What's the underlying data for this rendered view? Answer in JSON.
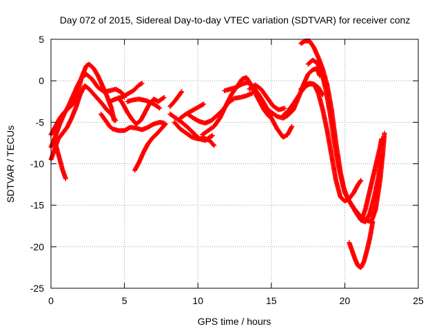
{
  "chart_data": {
    "type": "scatter",
    "title": "Day 072 of 2015, Sidereal Day-to-day VTEC variation (SDTVAR) for receiver conz",
    "xlabel": "GPS time / hours",
    "ylabel": "SDTVAR / TECUs",
    "xlim": [
      0,
      25
    ],
    "ylim": [
      -25,
      5
    ],
    "xticks": [
      "0",
      "5",
      "10",
      "15",
      "20",
      "25"
    ],
    "yticks": [
      "5",
      "0",
      "-5",
      "-10",
      "-15",
      "-20",
      "-25"
    ],
    "grid": true,
    "marker_color": "#ff0000",
    "series": [
      {
        "points": [
          [
            0.0,
            -6.5
          ],
          [
            0.3,
            -5.5
          ],
          [
            0.6,
            -4.5
          ],
          [
            0.9,
            -3.8
          ],
          [
            1.2,
            -3.3
          ],
          [
            1.5,
            -2.8
          ],
          [
            1.8,
            -1.5
          ],
          [
            2.1,
            0.5
          ],
          [
            2.4,
            1.8
          ],
          [
            2.6,
            2.0
          ],
          [
            2.9,
            1.5
          ],
          [
            3.2,
            0.6
          ],
          [
            3.5,
            -0.6
          ],
          [
            3.8,
            -1.8
          ],
          [
            4.1,
            -3.2
          ],
          [
            4.3,
            -4.8
          ]
        ]
      },
      {
        "points": [
          [
            0.0,
            -9.5
          ],
          [
            0.2,
            -8.5
          ],
          [
            0.5,
            -7.0
          ],
          [
            0.8,
            -6.3
          ],
          [
            1.1,
            -5.6
          ],
          [
            1.4,
            -4.5
          ],
          [
            1.7,
            -3.2
          ],
          [
            2.0,
            -1.6
          ],
          [
            2.3,
            -0.6
          ],
          [
            2.6,
            -1.0
          ],
          [
            2.9,
            -1.6
          ],
          [
            3.2,
            -2.2
          ],
          [
            3.5,
            -2.8
          ],
          [
            3.8,
            -3.5
          ],
          [
            4.1,
            -4.0
          ],
          [
            4.4,
            -4.8
          ]
        ]
      },
      {
        "points": [
          [
            0.0,
            -8.0
          ],
          [
            0.2,
            -7.2
          ],
          [
            0.4,
            -6.2
          ],
          [
            0.6,
            -5.2
          ],
          [
            0.9,
            -4.0
          ],
          [
            1.2,
            -3.0
          ],
          [
            1.5,
            -1.8
          ],
          [
            1.8,
            -0.6
          ],
          [
            2.1,
            0.4
          ],
          [
            2.4,
            0.8
          ],
          [
            2.8,
            0.2
          ],
          [
            3.2,
            -0.8
          ],
          [
            3.6,
            -1.3
          ],
          [
            4.0,
            -1.2
          ],
          [
            4.4,
            -1.0
          ],
          [
            4.8,
            -1.4
          ],
          [
            5.0,
            -2.0
          ]
        ]
      },
      {
        "points": [
          [
            0.2,
            -7.0
          ],
          [
            0.4,
            -8.2
          ],
          [
            0.6,
            -9.5
          ],
          [
            0.8,
            -10.8
          ],
          [
            1.0,
            -11.8
          ]
        ]
      },
      {
        "points": [
          [
            3.4,
            -4.0
          ],
          [
            3.6,
            -4.5
          ],
          [
            3.8,
            -5.0
          ],
          [
            4.0,
            -5.5
          ],
          [
            4.2,
            -5.8
          ],
          [
            4.6,
            -6.0
          ],
          [
            5.0,
            -6.0
          ],
          [
            5.4,
            -5.6
          ],
          [
            5.8,
            -5.7
          ],
          [
            6.2,
            -5.9
          ],
          [
            6.6,
            -5.6
          ],
          [
            7.0,
            -5.2
          ],
          [
            7.4,
            -5.0
          ],
          [
            7.7,
            -5.1
          ]
        ]
      },
      {
        "points": [
          [
            4.0,
            -2.5
          ],
          [
            4.4,
            -2.2
          ],
          [
            4.8,
            -2.0
          ],
          [
            5.2,
            -1.6
          ],
          [
            5.6,
            -1.2
          ],
          [
            6.0,
            -0.5
          ],
          [
            6.2,
            -0.3
          ]
        ]
      },
      {
        "points": [
          [
            4.6,
            -2.0
          ],
          [
            4.9,
            -2.8
          ],
          [
            5.2,
            -3.8
          ],
          [
            5.5,
            -4.6
          ],
          [
            5.8,
            -5.2
          ],
          [
            6.1,
            -4.8
          ],
          [
            6.4,
            -3.8
          ],
          [
            6.7,
            -2.8
          ],
          [
            7.0,
            -2.2
          ],
          [
            7.3,
            -2.5
          ],
          [
            7.7,
            -2.0
          ]
        ]
      },
      {
        "points": [
          [
            5.7,
            -10.8
          ],
          [
            6.0,
            -9.8
          ],
          [
            6.3,
            -8.6
          ],
          [
            6.6,
            -7.6
          ],
          [
            6.9,
            -6.9
          ],
          [
            7.2,
            -6.4
          ],
          [
            7.5,
            -5.8
          ],
          [
            7.8,
            -5.2
          ]
        ]
      },
      {
        "points": [
          [
            5.2,
            -2.5
          ],
          [
            5.6,
            -2.3
          ],
          [
            6.0,
            -2.2
          ],
          [
            6.5,
            -2.4
          ],
          [
            7.0,
            -2.8
          ],
          [
            7.4,
            -3.3
          ]
        ]
      },
      {
        "points": [
          [
            8.1,
            -3.1
          ],
          [
            8.4,
            -2.5
          ],
          [
            8.7,
            -1.8
          ],
          [
            8.9,
            -1.3
          ]
        ]
      },
      {
        "points": [
          [
            8.1,
            -4.0
          ],
          [
            8.5,
            -4.5
          ],
          [
            8.9,
            -5.0
          ],
          [
            9.3,
            -5.6
          ],
          [
            9.7,
            -6.3
          ],
          [
            10.1,
            -7.0
          ],
          [
            10.5,
            -7.2
          ],
          [
            10.8,
            -6.8
          ],
          [
            11.0,
            -6.6
          ]
        ]
      },
      {
        "points": [
          [
            8.4,
            -5.0
          ],
          [
            8.8,
            -5.8
          ],
          [
            9.2,
            -6.3
          ],
          [
            9.6,
            -6.8
          ],
          [
            10.0,
            -7.0
          ],
          [
            10.4,
            -6.9
          ],
          [
            10.8,
            -7.2
          ],
          [
            11.1,
            -7.8
          ]
        ]
      },
      {
        "points": [
          [
            8.8,
            -4.5
          ],
          [
            9.2,
            -4.0
          ],
          [
            9.6,
            -3.6
          ],
          [
            10.0,
            -3.2
          ],
          [
            10.4,
            -2.8
          ]
        ]
      },
      {
        "points": [
          [
            9.3,
            -4.0
          ],
          [
            9.7,
            -4.5
          ],
          [
            10.1,
            -4.9
          ],
          [
            10.5,
            -5.1
          ],
          [
            10.9,
            -4.8
          ],
          [
            11.3,
            -4.2
          ],
          [
            11.7,
            -3.5
          ],
          [
            12.1,
            -2.6
          ],
          [
            12.5,
            -2.1
          ],
          [
            12.9,
            -2.0
          ],
          [
            13.3,
            -1.8
          ],
          [
            13.7,
            -1.5
          ]
        ]
      },
      {
        "points": [
          [
            10.3,
            -6.5
          ],
          [
            10.7,
            -6.0
          ],
          [
            11.1,
            -5.5
          ],
          [
            11.5,
            -4.5
          ],
          [
            11.9,
            -3.0
          ],
          [
            12.3,
            -1.6
          ],
          [
            12.7,
            -0.6
          ],
          [
            13.0,
            0.2
          ],
          [
            13.3,
            0.4
          ],
          [
            13.6,
            -0.4
          ],
          [
            13.9,
            -1.5
          ],
          [
            14.2,
            -2.5
          ],
          [
            14.5,
            -3.5
          ],
          [
            14.8,
            -4.2
          ],
          [
            15.0,
            -4.5
          ]
        ]
      },
      {
        "points": [
          [
            11.8,
            -1.2
          ],
          [
            12.2,
            -1.0
          ],
          [
            12.6,
            -0.8
          ],
          [
            13.0,
            -0.4
          ],
          [
            13.4,
            -0.2
          ],
          [
            13.8,
            -0.8
          ],
          [
            14.2,
            -1.8
          ],
          [
            14.6,
            -3.0
          ],
          [
            15.0,
            -4.5
          ],
          [
            15.4,
            -5.8
          ],
          [
            15.8,
            -6.8
          ],
          [
            16.1,
            -6.5
          ],
          [
            16.4,
            -5.5
          ]
        ]
      },
      {
        "points": [
          [
            13.5,
            -1.0
          ],
          [
            13.9,
            -0.5
          ],
          [
            14.3,
            -1.0
          ],
          [
            14.7,
            -2.0
          ],
          [
            15.1,
            -3.0
          ],
          [
            15.5,
            -3.5
          ],
          [
            15.9,
            -3.3
          ]
        ]
      },
      {
        "points": [
          [
            14.6,
            -3.2
          ],
          [
            15.0,
            -3.8
          ],
          [
            15.4,
            -4.3
          ],
          [
            15.8,
            -4.5
          ],
          [
            16.1,
            -4.2
          ],
          [
            16.5,
            -3.5
          ],
          [
            16.9,
            -1.8
          ],
          [
            17.2,
            -0.4
          ],
          [
            17.5,
            0.8
          ],
          [
            17.8,
            1.3
          ],
          [
            18.1,
            1.5
          ],
          [
            18.3,
            0.6
          ]
        ]
      },
      {
        "points": [
          [
            15.8,
            -4.2
          ],
          [
            16.2,
            -3.5
          ],
          [
            16.6,
            -2.5
          ],
          [
            17.0,
            -1.4
          ],
          [
            17.3,
            -0.7
          ],
          [
            17.6,
            -0.4
          ],
          [
            17.9,
            -0.4
          ],
          [
            18.2,
            -0.8
          ],
          [
            18.5,
            -1.7
          ]
        ]
      },
      {
        "points": [
          [
            17.0,
            4.5
          ],
          [
            17.3,
            4.8
          ],
          [
            17.6,
            4.8
          ],
          [
            17.9,
            4.0
          ],
          [
            18.2,
            2.8
          ],
          [
            18.5,
            1.4
          ],
          [
            18.8,
            -0.5
          ],
          [
            19.1,
            -3.5
          ],
          [
            19.4,
            -7.5
          ],
          [
            19.7,
            -11.0
          ],
          [
            20.0,
            -13.5
          ],
          [
            20.4,
            -14.8
          ],
          [
            20.8,
            -16.0
          ],
          [
            21.1,
            -16.8
          ],
          [
            21.4,
            -17.0
          ],
          [
            21.7,
            -16.0
          ],
          [
            22.0,
            -14.0
          ],
          [
            22.3,
            -11.5
          ],
          [
            22.5,
            -9.0
          ]
        ]
      },
      {
        "points": [
          [
            17.5,
            2.0
          ],
          [
            17.8,
            2.5
          ],
          [
            18.1,
            2.2
          ],
          [
            18.4,
            1.2
          ],
          [
            18.7,
            -1.0
          ],
          [
            19.0,
            -4.0
          ],
          [
            19.3,
            -7.5
          ],
          [
            19.6,
            -10.5
          ],
          [
            19.9,
            -12.8
          ],
          [
            20.2,
            -14.2
          ],
          [
            20.6,
            -15.3
          ],
          [
            21.0,
            -16.2
          ],
          [
            21.4,
            -16.8
          ],
          [
            21.8,
            -17.0
          ],
          [
            22.1,
            -15.5
          ],
          [
            22.4,
            -12.0
          ],
          [
            22.6,
            -8.5
          ],
          [
            22.7,
            -6.3
          ]
        ]
      },
      {
        "points": [
          [
            17.0,
            -1.0
          ],
          [
            17.3,
            -0.5
          ],
          [
            17.6,
            -0.3
          ],
          [
            17.9,
            -0.4
          ],
          [
            18.2,
            -1.5
          ],
          [
            18.5,
            -3.5
          ],
          [
            18.8,
            -6.0
          ],
          [
            19.1,
            -9.0
          ],
          [
            19.4,
            -12.0
          ],
          [
            19.7,
            -14.0
          ],
          [
            20.0,
            -14.5
          ],
          [
            20.3,
            -14.2
          ],
          [
            20.6,
            -13.5
          ],
          [
            20.9,
            -12.5
          ],
          [
            21.1,
            -12.0
          ]
        ]
      },
      {
        "points": [
          [
            20.3,
            -19.5
          ],
          [
            20.5,
            -20.5
          ],
          [
            20.7,
            -21.5
          ],
          [
            20.9,
            -22.3
          ],
          [
            21.1,
            -22.5
          ],
          [
            21.3,
            -21.8
          ],
          [
            21.5,
            -20.5
          ],
          [
            21.7,
            -19.0
          ],
          [
            21.9,
            -17.0
          ]
        ]
      },
      {
        "points": [
          [
            21.2,
            -16.5
          ],
          [
            21.4,
            -15.5
          ],
          [
            21.6,
            -14.0
          ],
          [
            21.8,
            -12.5
          ],
          [
            22.0,
            -11.0
          ],
          [
            22.2,
            -9.5
          ],
          [
            22.4,
            -8.0
          ],
          [
            22.5,
            -7.0
          ]
        ]
      }
    ]
  }
}
